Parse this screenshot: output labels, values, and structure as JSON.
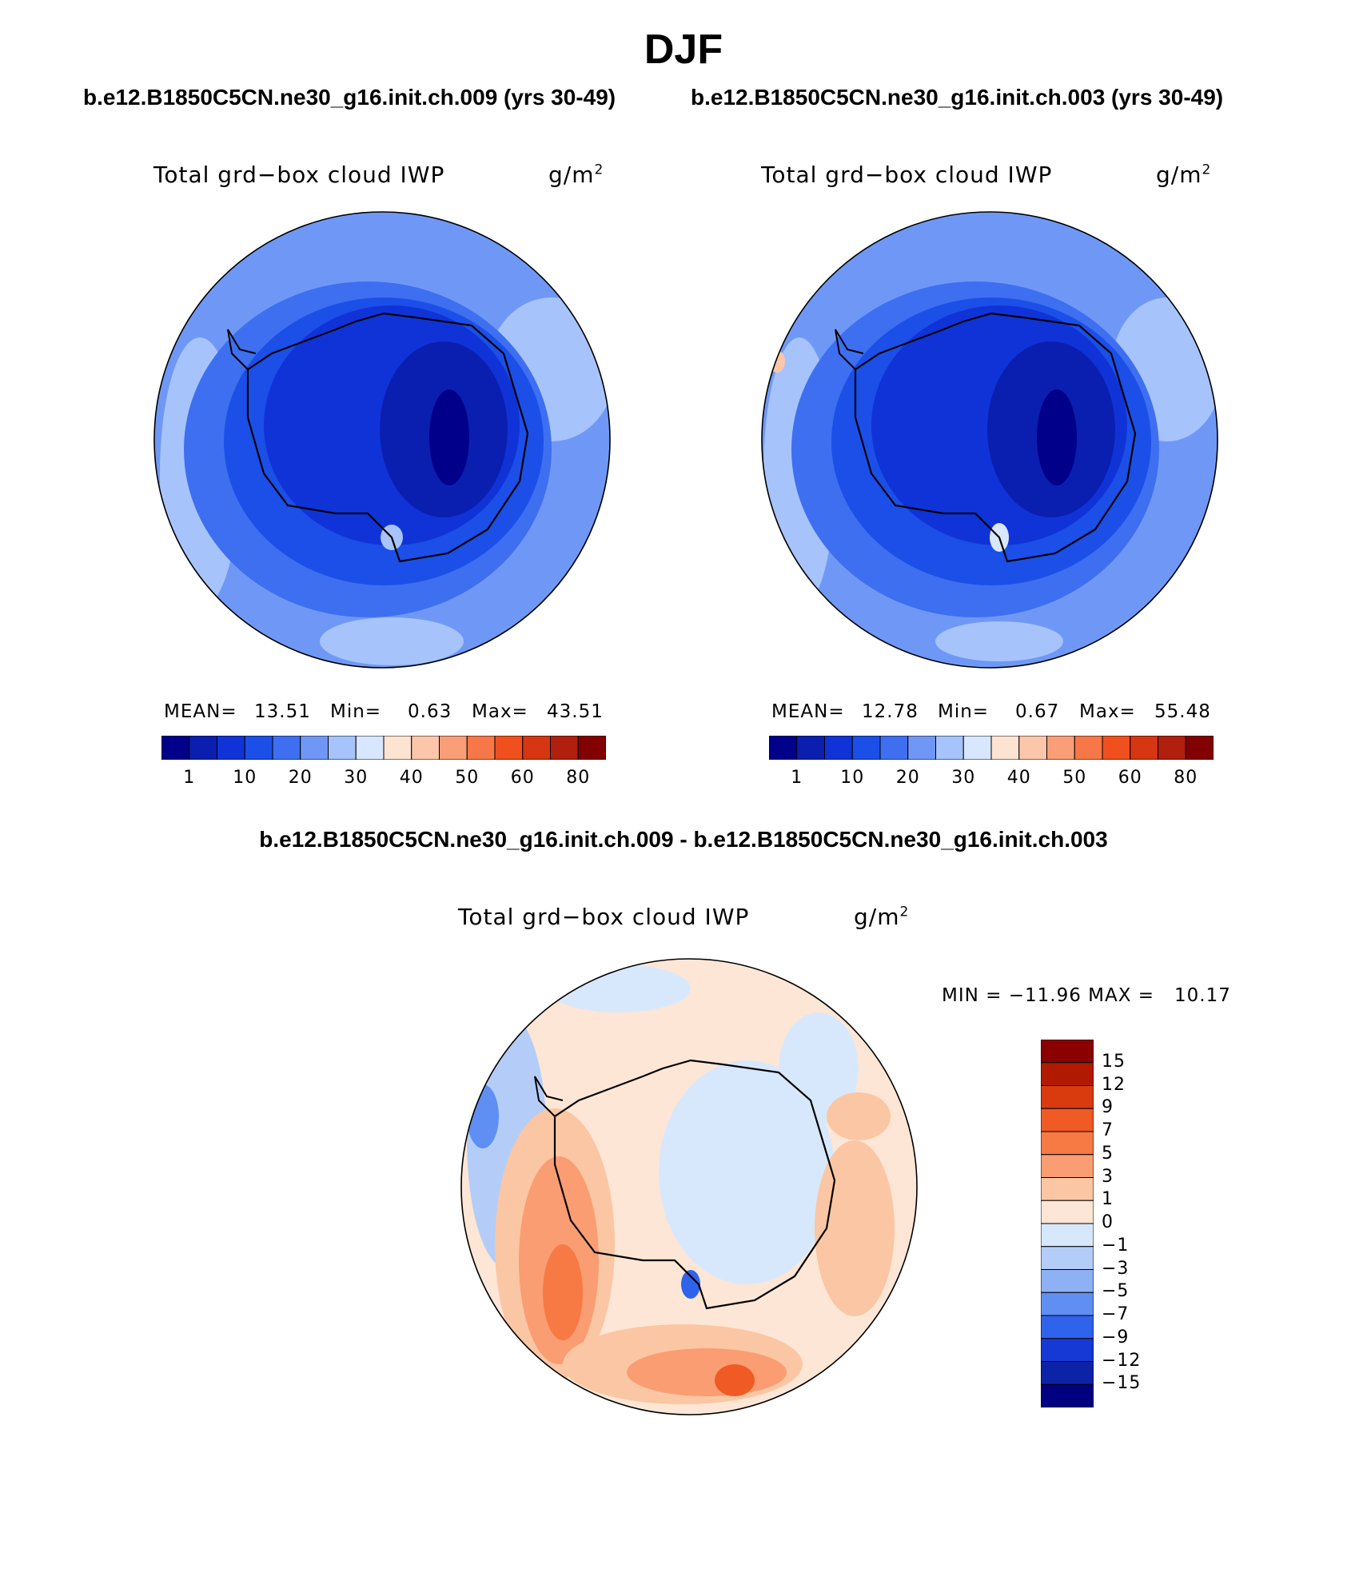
{
  "title": "DJF",
  "panels": [
    {
      "case_title": "b.e12.B1850C5CN.ne30_g16.init.ch.009 (yrs 30-49)",
      "variable": "Total grd−box cloud IWP",
      "units_base": "g/m",
      "units_exp": "2",
      "stats": {
        "mean_label": "MEAN=",
        "mean": "13.51",
        "min_label": "Min=",
        "min": "0.63",
        "max_label": "Max=",
        "max": "43.51"
      }
    },
    {
      "case_title": "b.e12.B1850C5CN.ne30_g16.init.ch.003 (yrs 30-49)",
      "variable": "Total grd−box cloud IWP",
      "units_base": "g/m",
      "units_exp": "2",
      "stats": {
        "mean_label": "MEAN=",
        "mean": "12.78",
        "min_label": "Min=",
        "min": "0.67",
        "max_label": "Max=",
        "max": "55.48"
      }
    }
  ],
  "abs_colorbar": {
    "colors": [
      "#00008b",
      "#0a1fb0",
      "#1033d8",
      "#1b4fe8",
      "#3d6ff0",
      "#6f98f6",
      "#a6c3fb",
      "#d8e7fe",
      "#fde4d2",
      "#fcc6aa",
      "#fa9e78",
      "#f77748",
      "#f0501e",
      "#d63612",
      "#b0200c",
      "#820000"
    ],
    "tick_labels": [
      "1",
      "10",
      "20",
      "30",
      "40",
      "50",
      "60",
      "80"
    ]
  },
  "diff": {
    "title": "b.e12.B1850C5CN.ne30_g16.init.ch.009 - b.e12.B1850C5CN.ne30_g16.init.ch.003",
    "variable": "Total grd−box cloud IWP",
    "units_base": "g/m",
    "units_exp": "2",
    "minmax": "MIN = −11.96 MAX =   10.17",
    "colorbar": {
      "colors_top_to_bottom": [
        "#8b0000",
        "#b21a00",
        "#d93b0f",
        "#f05a24",
        "#f77a45",
        "#fa9d72",
        "#fbc6a3",
        "#fde6d5",
        "#d8e8fc",
        "#b3cdf8",
        "#8eb0f5",
        "#5f8ff2",
        "#2f63ec",
        "#1639d6",
        "#0c23a8",
        "#000080"
      ],
      "tick_labels": [
        "15",
        "12",
        "9",
        "7",
        "5",
        "3",
        "1",
        "0",
        "−1",
        "−3",
        "−5",
        "−7",
        "−9",
        "−12",
        "−15"
      ]
    }
  }
}
